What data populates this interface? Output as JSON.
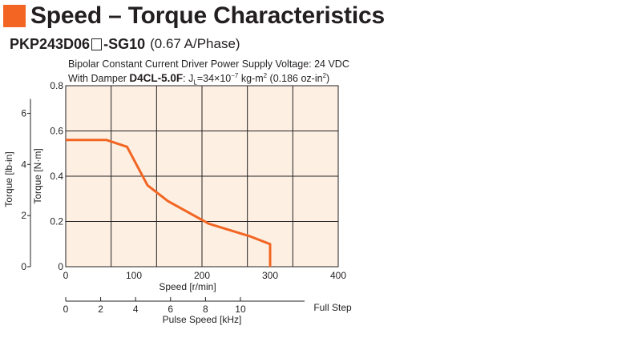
{
  "header": {
    "title": "Speed – Torque Characteristics",
    "model_prefix": "PKP243D06",
    "model_suffix": "-SG10",
    "phase": "(0.67 A/Phase)"
  },
  "conditions": {
    "line1": "Bipolar Constant Current Driver  Power Supply Voltage: 24 VDC",
    "line2_prefix": "With Damper ",
    "damper_model": "D4CL-5.0F",
    "line2_inertia_label": ": J",
    "line2_inertia_sub": "L",
    "line2_inertia_value": "=34×10",
    "line2_inertia_exp": "−7",
    "line2_inertia_unit": " kg-m",
    "line2_inertia_unit_exp": "2",
    "line2_alt": " (0.186 oz-in",
    "line2_alt_exp": "2",
    "line2_alt_close": ")"
  },
  "colors": {
    "curve": "#f26522",
    "plot_bg": "#fdf0e3",
    "accent_square": "#f26522"
  },
  "chart_data": {
    "type": "line",
    "series": [
      {
        "x": [
          0,
          60,
          90,
          120,
          150,
          210,
          270,
          300,
          300
        ],
        "y": [
          0.56,
          0.56,
          0.53,
          0.36,
          0.29,
          0.19,
          0.135,
          0.1,
          0
        ]
      }
    ],
    "xlabel": "Speed [r/min]",
    "xlim": [
      0,
      400
    ],
    "xticks": [
      "0",
      "100",
      "200",
      "300",
      "400"
    ],
    "ylabel": "Torque [N·m]",
    "ylim": [
      0,
      0.8
    ],
    "yticks": [
      "0",
      "0.2",
      "0.4",
      "0.6",
      "0.8"
    ],
    "y2label": "Torque [lb-in]",
    "y2ticks": [
      "0",
      "2",
      "4",
      "6"
    ],
    "y2values": [
      0,
      2,
      4,
      6
    ],
    "y2_per_y": 8.85,
    "pulse_label": "Pulse Speed [kHz]",
    "pulse_ticks": [
      "0",
      "2",
      "4",
      "6",
      "8",
      "10"
    ],
    "pulse_values": [
      0,
      2,
      4,
      6,
      8,
      10
    ],
    "pulse_khz_at_xmax": 15.6,
    "pulse_mode": "Full Step",
    "grid": true
  }
}
